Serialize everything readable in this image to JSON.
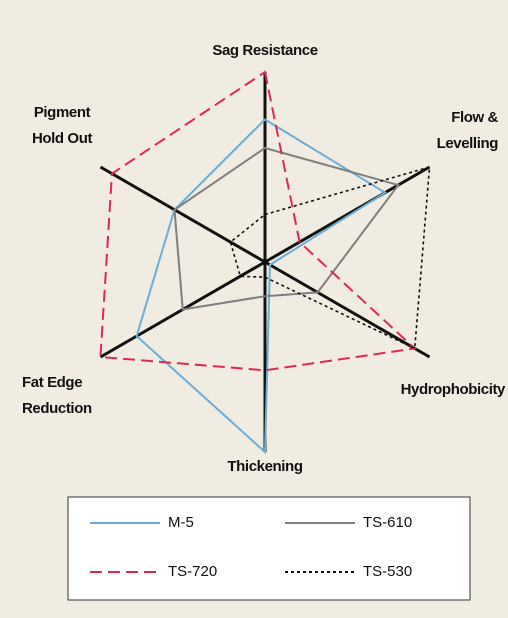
{
  "chart_data": {
    "type": "radar",
    "categories": [
      "Sag Resistance",
      "Flow &\nLevelling",
      "Hydrophobicity",
      "Thickening",
      "Fat Edge\nReduction",
      "Pigment\nHold Out"
    ],
    "rlim": [
      0,
      10
    ],
    "series": [
      {
        "name": "M-5",
        "color": "#6aaed6",
        "dash": "solid",
        "values": [
          7.5,
          7.3,
          0.3,
          10,
          7.8,
          5.5
        ]
      },
      {
        "name": "TS-610",
        "color": "#7f7f7f",
        "dash": "solid",
        "values": [
          6,
          8.1,
          3.2,
          1.8,
          5,
          5.5
        ]
      },
      {
        "name": "TS-720",
        "color": "#e0284f",
        "dash": "dashed",
        "values": [
          10,
          2.1,
          9.1,
          5.7,
          10,
          9.3
        ]
      },
      {
        "name": "TS-530",
        "color": "#111111",
        "dash": "dotted",
        "values": [
          2.5,
          10,
          9.1,
          0.8,
          1.5,
          2.1
        ]
      }
    ],
    "legend": "bottom"
  }
}
